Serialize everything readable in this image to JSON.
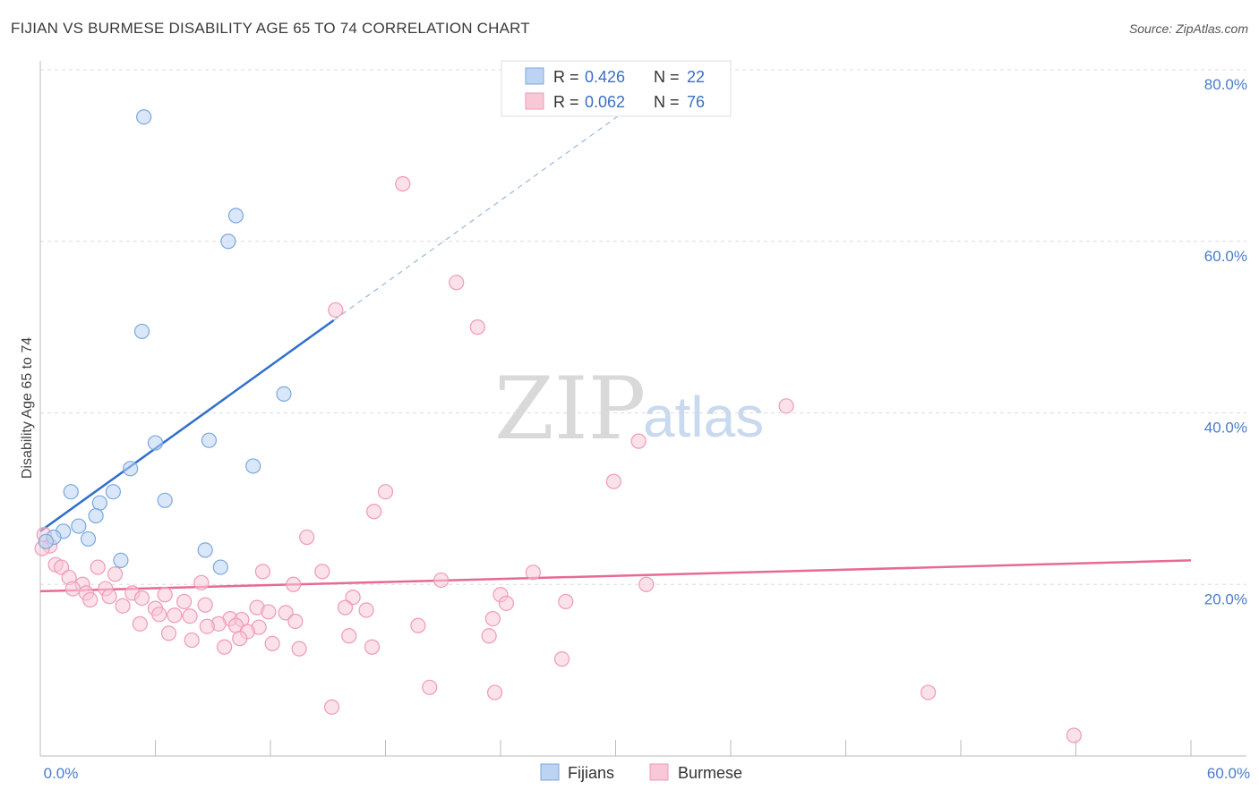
{
  "chart_data": {
    "type": "scatter",
    "title": "FIJIAN VS BURMESE DISABILITY AGE 65 TO 74 CORRELATION CHART",
    "source": "Source: ZipAtlas.com",
    "ylabel": "Disability Age 65 to 74",
    "xlabel": "",
    "xlim": [
      0,
      60
    ],
    "ylim": [
      0,
      80
    ],
    "y_ticks": [
      20,
      40,
      60,
      80
    ],
    "y_tick_labels": [
      "20.0%",
      "40.0%",
      "60.0%",
      "80.0%"
    ],
    "x_tick_labels": [
      "0.0%",
      "60.0%"
    ],
    "legend": [
      {
        "r_label": "R =",
        "r_value": "0.426",
        "n_label": "N =",
        "n_value": "22"
      },
      {
        "r_label": "R =",
        "r_value": "0.062",
        "n_label": "N =",
        "n_value": "76"
      }
    ],
    "series": [
      {
        "name": "Fijians",
        "color": "#7aa7e0",
        "fill": "#bcd3f2",
        "trend_color": "#2f6fce",
        "trend": {
          "x0": 0,
          "y0": 26.2,
          "x1": 15.3,
          "y1": 50.8,
          "dash_to_x": 31.0,
          "dash_to_y": 76.0
        },
        "points": [
          [
            5.4,
            74.5
          ],
          [
            10.2,
            63.0
          ],
          [
            9.8,
            60.0
          ],
          [
            5.3,
            49.5
          ],
          [
            12.7,
            42.2
          ],
          [
            6.0,
            36.5
          ],
          [
            8.8,
            36.8
          ],
          [
            11.1,
            33.8
          ],
          [
            4.7,
            33.5
          ],
          [
            1.6,
            30.8
          ],
          [
            3.8,
            30.8
          ],
          [
            6.5,
            29.8
          ],
          [
            3.1,
            29.5
          ],
          [
            2.9,
            28.0
          ],
          [
            2.0,
            26.8
          ],
          [
            1.2,
            26.2
          ],
          [
            0.7,
            25.5
          ],
          [
            2.5,
            25.3
          ],
          [
            0.3,
            25.0
          ],
          [
            8.6,
            24.0
          ],
          [
            4.2,
            22.8
          ],
          [
            9.4,
            22.0
          ]
        ]
      },
      {
        "name": "Burmese",
        "color": "#f09ab5",
        "fill": "#f8c8d7",
        "trend_color": "#e66a95",
        "trend": {
          "x0": 0,
          "y0": 19.2,
          "x1": 60,
          "y1": 22.8
        },
        "points": [
          [
            18.9,
            66.7
          ],
          [
            21.7,
            55.2
          ],
          [
            15.4,
            52.0
          ],
          [
            22.8,
            50.0
          ],
          [
            38.9,
            40.8
          ],
          [
            31.2,
            36.7
          ],
          [
            29.9,
            32.0
          ],
          [
            18.0,
            30.8
          ],
          [
            17.4,
            28.5
          ],
          [
            13.9,
            25.5
          ],
          [
            0.2,
            25.8
          ],
          [
            0.5,
            24.5
          ],
          [
            0.8,
            22.3
          ],
          [
            1.1,
            22.0
          ],
          [
            3.0,
            22.0
          ],
          [
            14.7,
            21.5
          ],
          [
            11.6,
            21.5
          ],
          [
            25.7,
            21.4
          ],
          [
            3.9,
            21.2
          ],
          [
            1.5,
            20.8
          ],
          [
            2.2,
            20.0
          ],
          [
            20.9,
            20.5
          ],
          [
            8.4,
            20.2
          ],
          [
            13.2,
            20.0
          ],
          [
            31.6,
            20.0
          ],
          [
            1.7,
            19.5
          ],
          [
            3.4,
            19.5
          ],
          [
            2.4,
            19.0
          ],
          [
            4.8,
            19.0
          ],
          [
            24.0,
            18.8
          ],
          [
            6.5,
            18.8
          ],
          [
            3.6,
            18.6
          ],
          [
            16.3,
            18.5
          ],
          [
            5.3,
            18.4
          ],
          [
            2.6,
            18.2
          ],
          [
            27.4,
            18.0
          ],
          [
            7.5,
            18.0
          ],
          [
            24.3,
            17.8
          ],
          [
            4.3,
            17.5
          ],
          [
            8.6,
            17.6
          ],
          [
            11.3,
            17.3
          ],
          [
            15.9,
            17.3
          ],
          [
            6.0,
            17.2
          ],
          [
            17.0,
            17.0
          ],
          [
            11.9,
            16.8
          ],
          [
            12.8,
            16.7
          ],
          [
            6.2,
            16.5
          ],
          [
            7.0,
            16.4
          ],
          [
            7.8,
            16.3
          ],
          [
            9.9,
            16.0
          ],
          [
            23.6,
            16.0
          ],
          [
            10.5,
            15.9
          ],
          [
            13.3,
            15.7
          ],
          [
            9.3,
            15.4
          ],
          [
            5.2,
            15.4
          ],
          [
            19.7,
            15.2
          ],
          [
            10.2,
            15.2
          ],
          [
            11.4,
            15.0
          ],
          [
            8.7,
            15.1
          ],
          [
            10.8,
            14.5
          ],
          [
            6.7,
            14.3
          ],
          [
            16.1,
            14.0
          ],
          [
            23.4,
            14.0
          ],
          [
            10.4,
            13.7
          ],
          [
            7.9,
            13.5
          ],
          [
            12.1,
            13.1
          ],
          [
            9.6,
            12.7
          ],
          [
            13.5,
            12.5
          ],
          [
            17.3,
            12.7
          ],
          [
            27.2,
            11.3
          ],
          [
            20.3,
            8.0
          ],
          [
            23.7,
            7.4
          ],
          [
            46.3,
            7.4
          ],
          [
            15.2,
            5.7
          ],
          [
            53.9,
            2.4
          ],
          [
            0.1,
            24.2
          ]
        ]
      }
    ]
  },
  "watermark": {
    "zip": "ZIP",
    "atlas": "atlas"
  }
}
